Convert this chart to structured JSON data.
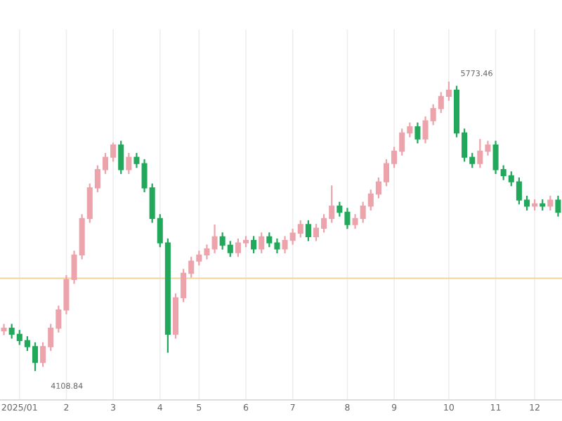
{
  "chart_data": {
    "type": "candlestick",
    "categories": [
      null,
      null,
      "2025/01",
      null,
      null,
      null,
      null,
      null,
      "2",
      null,
      null,
      null,
      null,
      null,
      "3",
      null,
      null,
      null,
      null,
      null,
      "4",
      null,
      null,
      null,
      null,
      "5",
      null,
      null,
      null,
      null,
      null,
      "6",
      null,
      null,
      null,
      null,
      null,
      "7",
      null,
      null,
      null,
      null,
      null,
      null,
      "8",
      null,
      null,
      null,
      null,
      null,
      "9",
      null,
      null,
      null,
      null,
      null,
      null,
      "10",
      null,
      null,
      null,
      null,
      null,
      "11",
      null,
      null,
      null,
      null,
      "12",
      null,
      null,
      null
    ],
    "ohlc": [
      [
        4340,
        4380,
        4315,
        4355
      ],
      [
        4355,
        4380,
        4295,
        4320
      ],
      [
        4320,
        4345,
        4259,
        4284
      ],
      [
        4284,
        4309,
        4224,
        4249
      ],
      [
        4249,
        4274,
        4108.84,
        4158
      ],
      [
        4158,
        4274,
        4133,
        4249
      ],
      [
        4249,
        4380,
        4224,
        4355
      ],
      [
        4355,
        4485,
        4330,
        4460
      ],
      [
        4460,
        4660,
        4435,
        4635
      ],
      [
        4635,
        4801,
        4610,
        4776
      ],
      [
        4776,
        5011,
        4751,
        4986
      ],
      [
        4986,
        5187,
        4961,
        5162
      ],
      [
        5162,
        5292,
        5137,
        5267
      ],
      [
        5267,
        5363,
        5242,
        5338
      ],
      [
        5338,
        5422,
        5313,
        5408
      ],
      [
        5408,
        5433,
        5242,
        5267
      ],
      [
        5267,
        5363,
        5242,
        5338
      ],
      [
        5338,
        5363,
        5277,
        5302
      ],
      [
        5302,
        5327,
        5137,
        5162
      ],
      [
        5162,
        5187,
        4961,
        4986
      ],
      [
        4986,
        5011,
        4821,
        4846
      ],
      [
        4846,
        4871,
        4214,
        4320
      ],
      [
        4320,
        4555,
        4295,
        4530
      ],
      [
        4530,
        4696,
        4505,
        4671
      ],
      [
        4671,
        4766,
        4646,
        4741
      ],
      [
        4741,
        4801,
        4716,
        4776
      ],
      [
        4776,
        4836,
        4751,
        4811
      ],
      [
        4811,
        4951,
        4786,
        4881
      ],
      [
        4881,
        4906,
        4807,
        4832
      ],
      [
        4832,
        4857,
        4765,
        4790
      ],
      [
        4790,
        4871,
        4765,
        4846
      ],
      [
        4846,
        4885,
        4821,
        4860
      ],
      [
        4860,
        4885,
        4786,
        4811
      ],
      [
        4811,
        4906,
        4786,
        4881
      ],
      [
        4881,
        4906,
        4821,
        4846
      ],
      [
        4846,
        4871,
        4786,
        4811
      ],
      [
        4811,
        4885,
        4786,
        4860
      ],
      [
        4860,
        4927,
        4835,
        4902
      ],
      [
        4902,
        4976,
        4877,
        4951
      ],
      [
        4951,
        4976,
        4856,
        4881
      ],
      [
        4881,
        4955,
        4856,
        4930
      ],
      [
        4930,
        5011,
        4905,
        4986
      ],
      [
        4986,
        5176,
        4961,
        5057
      ],
      [
        5057,
        5082,
        4997,
        5022
      ],
      [
        5022,
        5047,
        4926,
        4951
      ],
      [
        4951,
        5011,
        4926,
        4986
      ],
      [
        4986,
        5082,
        4961,
        5057
      ],
      [
        5057,
        5152,
        5032,
        5127
      ],
      [
        5127,
        5222,
        5102,
        5197
      ],
      [
        5197,
        5327,
        5172,
        5302
      ],
      [
        5302,
        5398,
        5277,
        5373
      ],
      [
        5373,
        5503,
        5348,
        5478
      ],
      [
        5478,
        5538,
        5453,
        5513
      ],
      [
        5513,
        5538,
        5418,
        5443
      ],
      [
        5443,
        5573,
        5418,
        5548
      ],
      [
        5548,
        5643,
        5523,
        5618
      ],
      [
        5618,
        5713,
        5593,
        5688
      ],
      [
        5688,
        5773.46,
        5663,
        5724
      ],
      [
        5724,
        5749,
        5453,
        5478
      ],
      [
        5478,
        5503,
        5313,
        5338
      ],
      [
        5338,
        5363,
        5277,
        5302
      ],
      [
        5302,
        5443,
        5277,
        5373
      ],
      [
        5373,
        5433,
        5348,
        5408
      ],
      [
        5408,
        5433,
        5242,
        5267
      ],
      [
        5267,
        5292,
        5207,
        5232
      ],
      [
        5232,
        5257,
        5172,
        5197
      ],
      [
        5197,
        5222,
        5067,
        5092
      ],
      [
        5092,
        5117,
        5032,
        5057
      ],
      [
        5057,
        5096,
        5032,
        5071
      ],
      [
        5071,
        5096,
        5032,
        5057
      ],
      [
        5057,
        5117,
        5032,
        5092
      ],
      [
        5092,
        5117,
        4997,
        5022
      ]
    ],
    "colors": [
      "#eda3ab",
      "#22a85a",
      "#22a85a",
      "#22a85a",
      "#22a85a",
      "#eda3ab",
      "#eda3ab",
      "#eda3ab",
      "#eda3ab",
      "#eda3ab",
      "#eda3ab",
      "#eda3ab",
      "#eda3ab",
      "#eda3ab",
      "#eda3ab",
      "#22a85a",
      "#eda3ab",
      "#22a85a",
      "#22a85a",
      "#22a85a",
      "#22a85a",
      "#22a85a",
      "#eda3ab",
      "#eda3ab",
      "#eda3ab",
      "#eda3ab",
      "#eda3ab",
      "#eda3ab",
      "#22a85a",
      "#22a85a",
      "#eda3ab",
      "#eda3ab",
      "#22a85a",
      "#eda3ab",
      "#22a85a",
      "#22a85a",
      "#eda3ab",
      "#eda3ab",
      "#eda3ab",
      "#22a85a",
      "#eda3ab",
      "#eda3ab",
      "#eda3ab",
      "#22a85a",
      "#22a85a",
      "#eda3ab",
      "#eda3ab",
      "#eda3ab",
      "#eda3ab",
      "#eda3ab",
      "#eda3ab",
      "#eda3ab",
      "#eda3ab",
      "#22a85a",
      "#eda3ab",
      "#eda3ab",
      "#eda3ab",
      "#eda3ab",
      "#22a85a",
      "#22a85a",
      "#22a85a",
      "#eda3ab",
      "#eda3ab",
      "#22a85a",
      "#22a85a",
      "#22a85a",
      "#22a85a",
      "#22a85a",
      "#eda3ab",
      "#22a85a",
      "#eda3ab",
      "#22a85a"
    ],
    "annotations": [
      "4108.84",
      "5773.46"
    ],
    "ref_lines": [
      {
        "axis": "y",
        "value": 4642,
        "color": "#f5d7a0"
      }
    ],
    "grid": "x",
    "tick_labels": "x"
  }
}
